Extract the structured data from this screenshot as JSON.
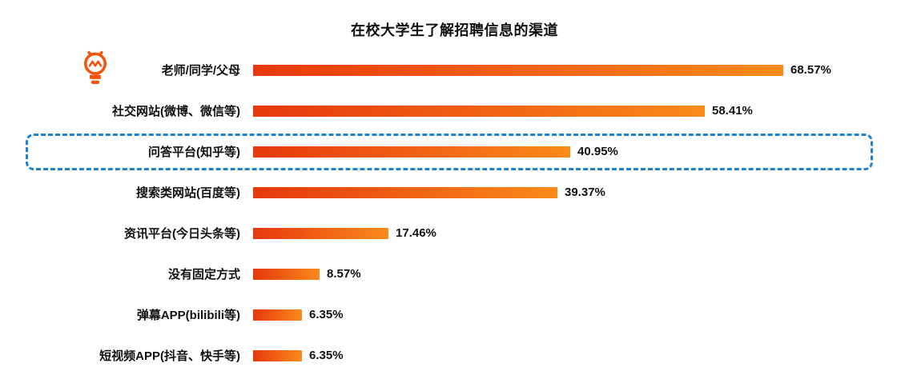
{
  "chart_data": {
    "type": "bar",
    "orientation": "horizontal",
    "title": "在校大学生了解招聘信息的渠道",
    "categories": [
      "老师/同学/父母",
      "社交网站(微博、微信等)",
      "问答平台(知乎等)",
      "搜索类网站(百度等)",
      "资讯平台(今日头条等)",
      "没有固定方式",
      "弹幕APP(bilibili等)",
      "短视频APP(抖音、快手等)"
    ],
    "values": [
      68.57,
      58.41,
      40.95,
      39.37,
      17.46,
      8.57,
      6.35,
      6.35
    ],
    "value_labels": [
      "68.57%",
      "58.41%",
      "40.95%",
      "39.37%",
      "17.46%",
      "8.57%",
      "6.35%",
      "6.35%"
    ],
    "xlim": [
      0,
      75
    ],
    "grid": false,
    "legend": "none",
    "bar_gradient_start": "#e6380d",
    "bar_gradient_end": "#fa8a1a",
    "highlight": {
      "category": "问答平台(知乎等)",
      "index": 2,
      "border_color": "#1e82d2",
      "border_style": "dashed"
    }
  },
  "icons": {
    "lightbulb": {
      "name": "lightbulb-icon",
      "color": "#f4530e"
    }
  }
}
